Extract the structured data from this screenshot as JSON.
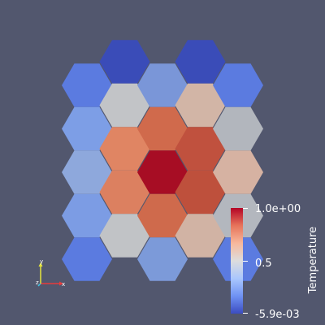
{
  "colors": {
    "background": "#52576e",
    "text": "#ffffff"
  },
  "colormap": {
    "name": "Cool to Warm",
    "stops": [
      "#3b4cc0",
      "#6f92f3",
      "#aac7fd",
      "#dddddd",
      "#f7b89c",
      "#e7745b",
      "#b40426"
    ]
  },
  "mesh": {
    "cells": [
      {
        "col": 0,
        "row": 0,
        "color": "#5b7be0"
      },
      {
        "col": 0,
        "row": 1,
        "color": "#7d9ee6"
      },
      {
        "col": 0,
        "row": 2,
        "color": "#8ea8dc"
      },
      {
        "col": 0,
        "row": 3,
        "color": "#7c9ce4"
      },
      {
        "col": 0,
        "row": 4,
        "color": "#5b7be0"
      },
      {
        "col": 1,
        "row": 0,
        "color": "#3a4cb8"
      },
      {
        "col": 1,
        "row": 1,
        "color": "#c2c4c7"
      },
      {
        "col": 1,
        "row": 2,
        "color": "#e08563"
      },
      {
        "col": 1,
        "row": 3,
        "color": "#dc8060"
      },
      {
        "col": 1,
        "row": 4,
        "color": "#c1c3c6"
      },
      {
        "col": 2,
        "row": 0,
        "color": "#7a96d8"
      },
      {
        "col": 2,
        "row": 1,
        "color": "#d06a4c"
      },
      {
        "col": 2,
        "row": 2,
        "color": "#a70d24"
      },
      {
        "col": 2,
        "row": 3,
        "color": "#cf6a4c"
      },
      {
        "col": 2,
        "row": 4,
        "color": "#7c9ad9"
      },
      {
        "col": 3,
        "row": 0,
        "color": "#3a4cb8"
      },
      {
        "col": 3,
        "row": 1,
        "color": "#d2b5a6"
      },
      {
        "col": 3,
        "row": 2,
        "color": "#c0513e"
      },
      {
        "col": 3,
        "row": 3,
        "color": "#be503c"
      },
      {
        "col": 3,
        "row": 4,
        "color": "#d1b3a4"
      },
      {
        "col": 4,
        "row": 0,
        "color": "#5b7be0"
      },
      {
        "col": 4,
        "row": 1,
        "color": "#b2b6bd"
      },
      {
        "col": 4,
        "row": 2,
        "color": "#d6b2a2"
      },
      {
        "col": 4,
        "row": 3,
        "color": "#b3b7be"
      },
      {
        "col": 4,
        "row": 4,
        "color": "#5b7be0"
      }
    ]
  },
  "colorbar": {
    "title": "Temperature",
    "max_label": "1.0e+00",
    "mid_label": "0.5",
    "min_label": "-5.9e-03"
  },
  "orientation_axes": {
    "x_label": "x",
    "y_label": "y",
    "z_label": "z",
    "x_color": "#e63c3c",
    "y_color": "#e6e63c",
    "z_color": "#3cc8e6"
  }
}
